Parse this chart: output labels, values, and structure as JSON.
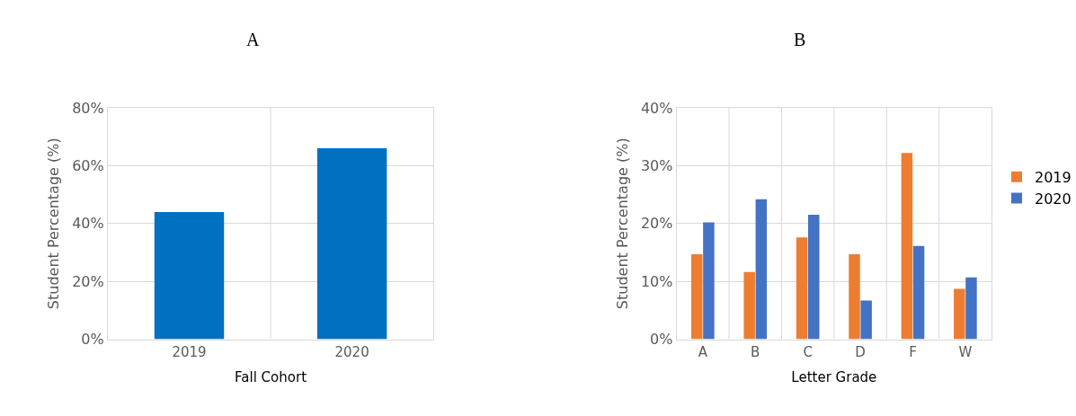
{
  "chart_data": [
    {
      "type": "bar",
      "title": "A",
      "xlabel": "Fall Cohort",
      "ylabel": "Student Percentage (%)",
      "categories": [
        "2019",
        "2020"
      ],
      "series": [
        {
          "color": "#0070c0",
          "values": [
            44,
            66
          ]
        }
      ],
      "ylim": [
        0,
        80
      ],
      "yticks": [
        {
          "value": 0,
          "label": "0%"
        },
        {
          "value": 20,
          "label": "20%"
        },
        {
          "value": 40,
          "label": "40%"
        },
        {
          "value": 60,
          "label": "60%"
        },
        {
          "value": 80,
          "label": "80%"
        }
      ],
      "grid": true,
      "legend": false
    },
    {
      "type": "bar",
      "title": "B",
      "xlabel": "Letter Grade",
      "ylabel": "Student Percentage (%)",
      "categories": [
        "A",
        "B",
        "C",
        "D",
        "F",
        "W"
      ],
      "series": [
        {
          "name": "2019",
          "color": "#ed7d31",
          "values": [
            14.7,
            11.6,
            17.6,
            14.7,
            32.2,
            8.7
          ]
        },
        {
          "name": "2020",
          "color": "#4472c4",
          "values": [
            20.2,
            24.2,
            21.5,
            6.7,
            16.1,
            10.7
          ]
        }
      ],
      "ylim": [
        0,
        40
      ],
      "yticks": [
        {
          "value": 0,
          "label": "0%"
        },
        {
          "value": 10,
          "label": "10%"
        },
        {
          "value": 20,
          "label": "20%"
        },
        {
          "value": 30,
          "label": "30%"
        },
        {
          "value": 40,
          "label": "40%"
        }
      ],
      "grid": true,
      "legend": "right"
    }
  ]
}
